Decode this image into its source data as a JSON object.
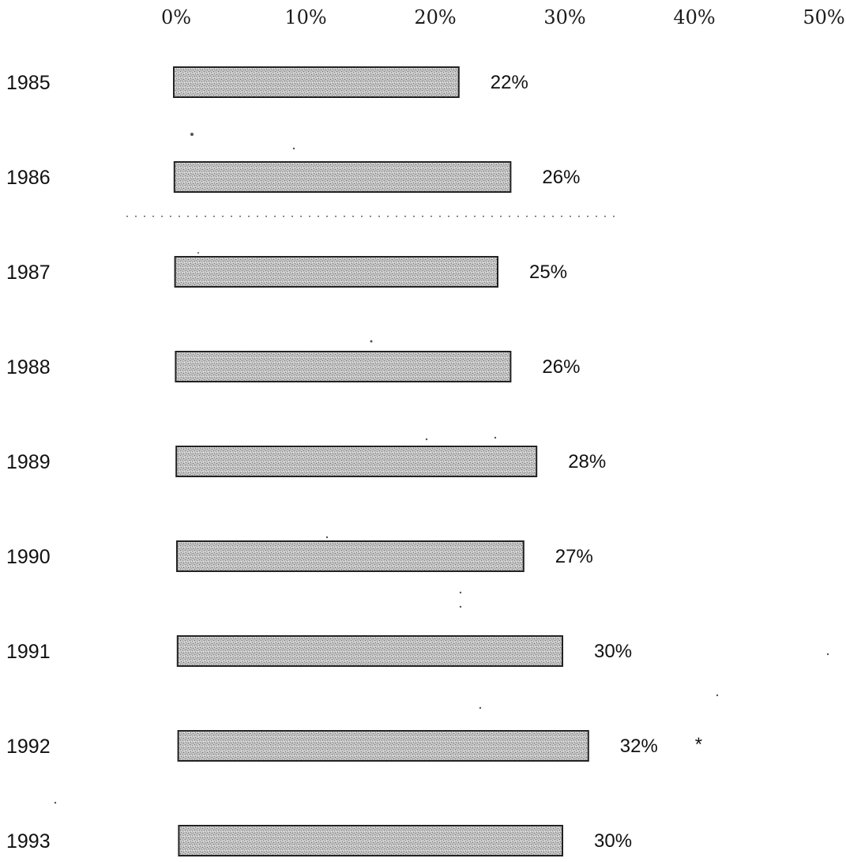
{
  "chart_data": {
    "type": "bar",
    "orientation": "horizontal",
    "title": "",
    "xlabel": "",
    "ylabel": "",
    "x_ticks": [
      "0%",
      "10%",
      "20%",
      "30%",
      "40%",
      "50%"
    ],
    "xlim": [
      0,
      50
    ],
    "grid": false,
    "legend": "none",
    "categories": [
      "1985",
      "1986",
      "1987",
      "1988",
      "1989",
      "1990",
      "1991",
      "1992",
      "1993"
    ],
    "values": [
      22,
      26,
      25,
      26,
      28,
      27,
      30,
      32,
      30
    ],
    "value_labels": [
      "22%",
      "26%",
      "25%",
      "26%",
      "28%",
      "27%",
      "30%",
      "32%",
      "30%"
    ],
    "annotations": [
      {
        "category": "1992",
        "text": "*"
      }
    ],
    "colors": {
      "bar_fill": "#b8b8b8",
      "bar_stroke": "#222222",
      "text": "#111111"
    }
  }
}
